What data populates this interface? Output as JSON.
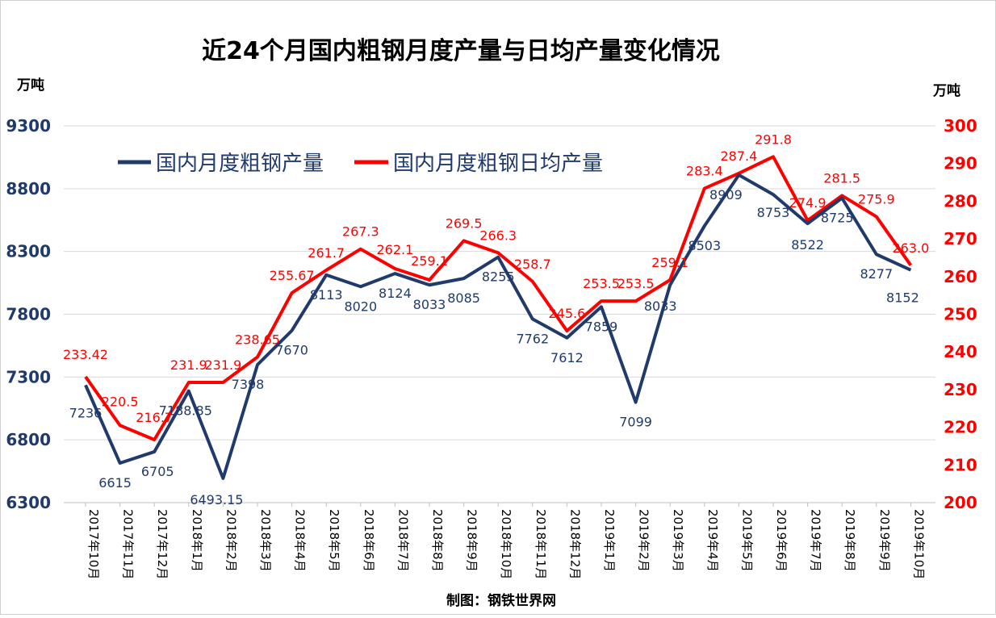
{
  "chart_data": {
    "type": "line",
    "title": "近24个月国内粗钢月度产量与日均产量变化情况",
    "y_left_unit": "万吨",
    "y_right_unit": "万吨",
    "y_left_range": [
      6300,
      9300
    ],
    "y_left_ticks": [
      "9300",
      "8800",
      "8300",
      "7800",
      "7300",
      "6800",
      "6300"
    ],
    "y_right_range": [
      200,
      300
    ],
    "y_right_ticks": [
      "300",
      "290",
      "280",
      "270",
      "260",
      "250",
      "240",
      "230",
      "220",
      "210",
      "200"
    ],
    "categories": [
      "2017年10月",
      "2017年11月",
      "2017年12月",
      "2018年1月",
      "2018年2月",
      "2018年3月",
      "2018年4月",
      "2018年5月",
      "2018年6月",
      "2018年7月",
      "2018年8月",
      "2018年9月",
      "2018年10月",
      "2018年11月",
      "2018年12月",
      "2019年1月",
      "2019年2月",
      "2019年3月",
      "2019年4月",
      "2019年5月",
      "2019年6月",
      "2019年7月",
      "2019年8月",
      "2019年9月",
      "2019年10月"
    ],
    "grid": true,
    "legend_placement": "top-left",
    "series": [
      {
        "name": "国内月度粗钢产量",
        "axis": "left",
        "color": "#1f3a6b",
        "values": [
          7236,
          6615,
          6705,
          7188.85,
          6493.15,
          7398,
          7670,
          8113,
          8020,
          8124,
          8033,
          8085,
          8255,
          7762,
          7612,
          7859,
          7099,
          8033,
          8503,
          8909,
          8753,
          8522,
          8725,
          8277,
          8152
        ],
        "labels": [
          "7236",
          "6615",
          "6705",
          "7188.85",
          "6493.15",
          "7398",
          "7670",
          "8113",
          "8020",
          "8124",
          "8033",
          "8085",
          "8255",
          "7762",
          "7612",
          "7859",
          "7099",
          "8033",
          "8503",
          "8909",
          "8753",
          "8522",
          "8725",
          "8277",
          "8152"
        ]
      },
      {
        "name": "国内月度粗钢日均产量",
        "axis": "right",
        "color": "#ff0000",
        "values": [
          233.42,
          220.5,
          216.7,
          231.9,
          231.9,
          238.65,
          255.67,
          261.7,
          267.3,
          262.1,
          259.1,
          269.5,
          266.3,
          258.7,
          245.6,
          253.5,
          253.5,
          259.1,
          283.4,
          287.4,
          291.8,
          274.9,
          281.5,
          275.9,
          263.0
        ],
        "labels": [
          "233.42",
          "220.5",
          "216.7",
          "231.9",
          "231.9",
          "238.65",
          "255.67",
          "261.7",
          "267.3",
          "262.1",
          "259.1",
          "269.5",
          "266.3",
          "258.7",
          "245.6",
          "253.5",
          "253.5",
          "259.1",
          "283.4",
          "287.4",
          "291.8",
          "274.9",
          "281.5",
          "275.9",
          "263.0"
        ]
      }
    ]
  },
  "credit": "制图：钢铁世界网"
}
